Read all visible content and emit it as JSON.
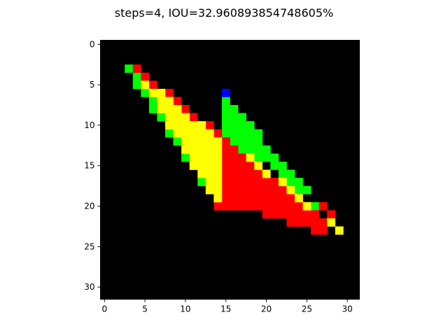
{
  "chart_data": {
    "type": "heatmap",
    "title": "steps=4, IOU=32.960893854748605%",
    "xlabel": "",
    "ylabel": "",
    "grid_size": [
      32,
      32
    ],
    "xlim": [
      -0.5,
      31.5
    ],
    "ylim": [
      31.5,
      -0.5
    ],
    "x_ticks": [
      0,
      5,
      10,
      15,
      20,
      25,
      30
    ],
    "y_ticks": [
      0,
      5,
      10,
      15,
      20,
      25,
      30
    ],
    "grid": false,
    "background": "#000000",
    "legend": "none",
    "colors": {
      "green": "#00ff00",
      "red": "#ff0000",
      "yellow": "#ffff00",
      "blue": "#0000ff"
    },
    "cells": {
      "green": [
        [
          3,
          3
        ],
        [
          4,
          4
        ],
        [
          4,
          5
        ],
        [
          5,
          6
        ],
        [
          6,
          7
        ],
        [
          6,
          8
        ],
        [
          7,
          9
        ],
        [
          8,
          11
        ],
        [
          9,
          12
        ],
        [
          10,
          14
        ],
        [
          12,
          17
        ],
        [
          15,
          7
        ],
        [
          15,
          8
        ],
        [
          15,
          9
        ],
        [
          16,
          8
        ],
        [
          16,
          9
        ],
        [
          16,
          10
        ],
        [
          17,
          9
        ],
        [
          17,
          10
        ],
        [
          17,
          11
        ],
        [
          15,
          10
        ],
        [
          16,
          11
        ],
        [
          17,
          12
        ],
        [
          18,
          10
        ],
        [
          18,
          11
        ],
        [
          18,
          12
        ],
        [
          18,
          13
        ],
        [
          19,
          11
        ],
        [
          19,
          12
        ],
        [
          19,
          13
        ],
        [
          19,
          14
        ],
        [
          20,
          13
        ],
        [
          20,
          14
        ],
        [
          21,
          14
        ],
        [
          21,
          15
        ],
        [
          22,
          15
        ],
        [
          22,
          16
        ],
        [
          23,
          16
        ],
        [
          23,
          17
        ],
        [
          24,
          17
        ],
        [
          24,
          18
        ],
        [
          25,
          18
        ],
        [
          26,
          20
        ],
        [
          15,
          11
        ],
        [
          16,
          12
        ],
        [
          17,
          13
        ],
        [
          16,
          13
        ]
      ],
      "red": [
        [
          4,
          3
        ],
        [
          5,
          4
        ],
        [
          6,
          5
        ],
        [
          8,
          6
        ],
        [
          9,
          7
        ],
        [
          10,
          8
        ],
        [
          11,
          9
        ],
        [
          13,
          10
        ],
        [
          14,
          11
        ],
        [
          15,
          12
        ],
        [
          27,
          20
        ],
        [
          28,
          21
        ],
        [
          26,
          22
        ],
        [
          27,
          22
        ],
        [
          25,
          21
        ],
        [
          26,
          21
        ],
        [
          24,
          20
        ],
        [
          25,
          20
        ],
        [
          15,
          13
        ],
        [
          16,
          13
        ],
        [
          15,
          14
        ],
        [
          16,
          14
        ],
        [
          17,
          14
        ],
        [
          15,
          15
        ],
        [
          16,
          15
        ],
        [
          17,
          15
        ],
        [
          18,
          15
        ],
        [
          15,
          16
        ],
        [
          16,
          16
        ],
        [
          17,
          16
        ],
        [
          18,
          16
        ],
        [
          19,
          16
        ],
        [
          15,
          17
        ],
        [
          16,
          17
        ],
        [
          17,
          17
        ],
        [
          18,
          17
        ],
        [
          19,
          17
        ],
        [
          20,
          17
        ],
        [
          21,
          17
        ],
        [
          15,
          18
        ],
        [
          16,
          18
        ],
        [
          17,
          18
        ],
        [
          18,
          18
        ],
        [
          19,
          18
        ],
        [
          20,
          18
        ],
        [
          21,
          18
        ],
        [
          22,
          18
        ],
        [
          15,
          19
        ],
        [
          16,
          19
        ],
        [
          17,
          19
        ],
        [
          18,
          19
        ],
        [
          19,
          19
        ],
        [
          20,
          19
        ],
        [
          21,
          19
        ],
        [
          22,
          19
        ],
        [
          23,
          19
        ],
        [
          14,
          20
        ],
        [
          15,
          20
        ],
        [
          16,
          20
        ],
        [
          17,
          20
        ],
        [
          18,
          20
        ],
        [
          19,
          20
        ],
        [
          20,
          20
        ],
        [
          21,
          20
        ],
        [
          22,
          20
        ],
        [
          23,
          20
        ],
        [
          20,
          21
        ],
        [
          21,
          21
        ],
        [
          22,
          21
        ],
        [
          23,
          21
        ],
        [
          24,
          21
        ],
        [
          24,
          22
        ],
        [
          25,
          22
        ],
        [
          23,
          22
        ],
        [
          26,
          23
        ],
        [
          27,
          23
        ]
      ],
      "yellow": [
        [
          5,
          5
        ],
        [
          6,
          6
        ],
        [
          7,
          6
        ],
        [
          7,
          7
        ],
        [
          8,
          7
        ],
        [
          8,
          8
        ],
        [
          9,
          8
        ],
        [
          7,
          8
        ],
        [
          8,
          9
        ],
        [
          9,
          9
        ],
        [
          10,
          9
        ],
        [
          8,
          10
        ],
        [
          9,
          10
        ],
        [
          10,
          10
        ],
        [
          11,
          10
        ],
        [
          12,
          10
        ],
        [
          9,
          11
        ],
        [
          10,
          11
        ],
        [
          11,
          11
        ],
        [
          12,
          11
        ],
        [
          13,
          11
        ],
        [
          10,
          12
        ],
        [
          11,
          12
        ],
        [
          12,
          12
        ],
        [
          13,
          12
        ],
        [
          14,
          12
        ],
        [
          10,
          13
        ],
        [
          11,
          13
        ],
        [
          12,
          13
        ],
        [
          13,
          13
        ],
        [
          14,
          13
        ],
        [
          11,
          14
        ],
        [
          12,
          14
        ],
        [
          13,
          14
        ],
        [
          14,
          14
        ],
        [
          11,
          15
        ],
        [
          12,
          15
        ],
        [
          13,
          15
        ],
        [
          14,
          15
        ],
        [
          12,
          16
        ],
        [
          13,
          16
        ],
        [
          14,
          16
        ],
        [
          13,
          17
        ],
        [
          14,
          17
        ],
        [
          13,
          18
        ],
        [
          14,
          18
        ],
        [
          14,
          19
        ],
        [
          18,
          14
        ],
        [
          19,
          15
        ],
        [
          20,
          16
        ],
        [
          22,
          17
        ],
        [
          23,
          18
        ],
        [
          24,
          19
        ],
        [
          25,
          20
        ],
        [
          28,
          22
        ],
        [
          29,
          23
        ]
      ],
      "blue": [
        [
          15,
          6
        ]
      ]
    }
  }
}
